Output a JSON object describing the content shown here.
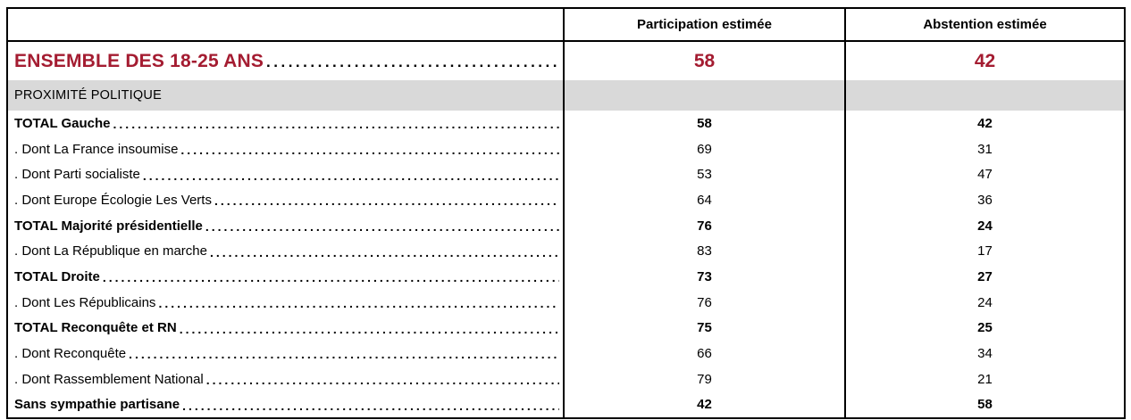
{
  "header": {
    "col_participation": "Participation estimée",
    "col_abstention": "Abstention estimée"
  },
  "ensemble": {
    "label": "ENSEMBLE DES 18-25 ANS",
    "participation": "58",
    "abstention": "42"
  },
  "section": {
    "label": "PROXIMITÉ POLITIQUE"
  },
  "rows": [
    {
      "label": "TOTAL Gauche",
      "participation": "58",
      "abstention": "42",
      "bold": true
    },
    {
      "label": ". Dont La France insoumise",
      "participation": "69",
      "abstention": "31",
      "bold": false
    },
    {
      "label": ". Dont Parti socialiste",
      "participation": "53",
      "abstention": "47",
      "bold": false
    },
    {
      "label": ". Dont Europe Écologie Les Verts",
      "participation": "64",
      "abstention": "36",
      "bold": false
    },
    {
      "label": "TOTAL Majorité présidentielle",
      "participation": "76",
      "abstention": "24",
      "bold": true
    },
    {
      "label": ". Dont La République en marche",
      "participation": "83",
      "abstention": "17",
      "bold": false
    },
    {
      "label": "TOTAL Droite",
      "participation": "73",
      "abstention": "27",
      "bold": true
    },
    {
      "label": ". Dont Les Républicains",
      "participation": "76",
      "abstention": "24",
      "bold": false
    },
    {
      "label": "TOTAL Reconquête et RN",
      "participation": "75",
      "abstention": "25",
      "bold": true
    },
    {
      "label": ". Dont Reconquête",
      "participation": "66",
      "abstention": "34",
      "bold": false
    },
    {
      "label": ". Dont Rassemblement National",
      "participation": "79",
      "abstention": "21",
      "bold": false
    },
    {
      "label": "Sans sympathie partisane",
      "participation": "42",
      "abstention": "58",
      "bold": true
    }
  ],
  "colors": {
    "accent_red": "#A41C31",
    "section_gray": "#D9D9D9",
    "border_black": "#000000"
  }
}
